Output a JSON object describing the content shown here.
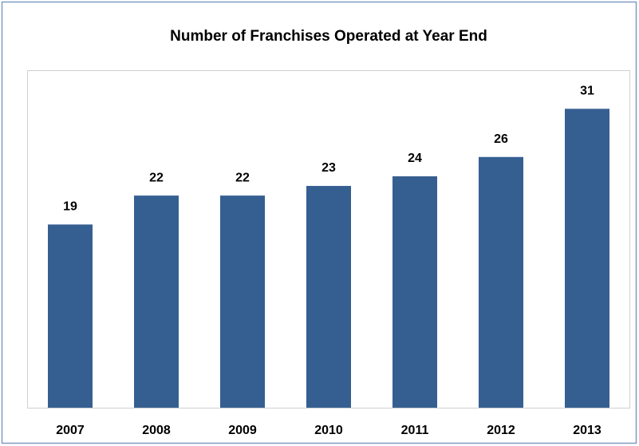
{
  "chart_data": {
    "type": "bar",
    "title": "Number of Franchises Operated at Year End",
    "categories": [
      "2007",
      "2008",
      "2009",
      "2010",
      "2011",
      "2012",
      "2013"
    ],
    "values": [
      19,
      22,
      22,
      23,
      24,
      26,
      31
    ],
    "color": "#365f91",
    "ylim": [
      0,
      35
    ]
  }
}
